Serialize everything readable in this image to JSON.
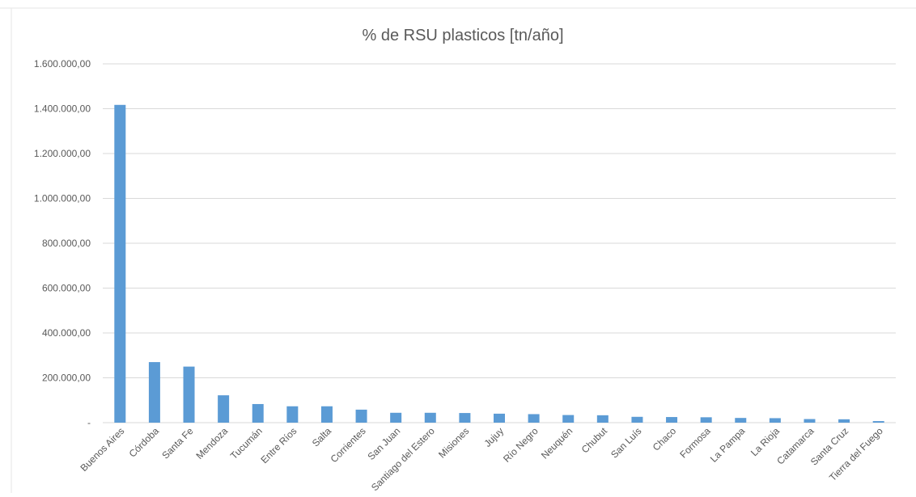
{
  "chart_data": {
    "type": "bar",
    "title": "% de RSU plasticos [tn/año]",
    "categories": [
      "Buenos Aires",
      "Córdoba",
      "Santa Fe",
      "Mendoza",
      "Tucumán",
      "Entre Ríos",
      "Salta",
      "Corrientes",
      "San Juan",
      "Santiago del Estero",
      "Misiones",
      "Jujuy",
      "Río Negro",
      "Neuquén",
      "Chubut",
      "San Luís",
      "Chaco",
      "Formosa",
      "La Pampa",
      "La Rioja",
      "Catamarca",
      "Santa Cruz",
      "Tierra del Fuego"
    ],
    "values": [
      1417000,
      270000,
      250000,
      122000,
      83000,
      73000,
      73000,
      58000,
      44000,
      44000,
      43000,
      40000,
      38000,
      34000,
      33000,
      26000,
      25000,
      24000,
      21000,
      20000,
      16000,
      15000,
      7000
    ],
    "yticks": [
      "-",
      "200.000,00",
      "400.000,00",
      "600.000,00",
      "800.000,00",
      "1.000.000,00",
      "1.200.000,00",
      "1.400.000,00",
      "1.600.000,00"
    ],
    "ylim": [
      0,
      1600000
    ],
    "grid": true,
    "bar_color": "#5b9bd5",
    "grid_color": "#d9d9d9"
  }
}
